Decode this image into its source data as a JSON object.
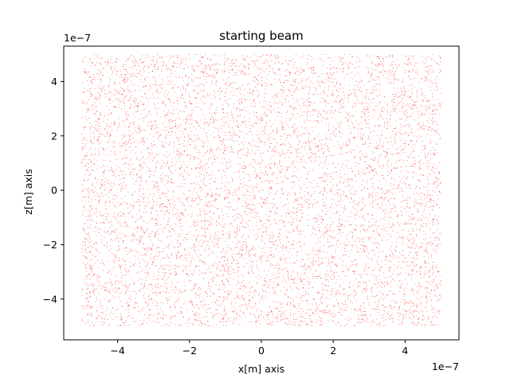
{
  "chart_data": {
    "type": "scatter",
    "title": "starting beam",
    "xlabel": "x[m] axis",
    "ylabel": "z[m] axis",
    "x_offset_label": "1e−7",
    "y_offset_label": "1e−7",
    "xlim": [
      -5.5,
      5.5
    ],
    "ylim": [
      -5.5,
      5.3
    ],
    "x_ticks": [
      -4,
      -2,
      0,
      2,
      4
    ],
    "y_ticks": [
      -4,
      -2,
      0,
      2,
      4
    ],
    "x_tick_labels": [
      "−4",
      "−2",
      "0",
      "2",
      "4"
    ],
    "y_tick_labels": [
      "−4",
      "−2",
      "0",
      "2",
      "4"
    ],
    "scale_factor": "1e-7",
    "distribution": {
      "kind": "uniform",
      "x_range": [
        -5.0,
        5.0
      ],
      "y_range": [
        -5.0,
        5.0
      ],
      "n_points": 9000
    },
    "marker": "point",
    "color": "#ff0000",
    "grid": false,
    "legend": false
  }
}
